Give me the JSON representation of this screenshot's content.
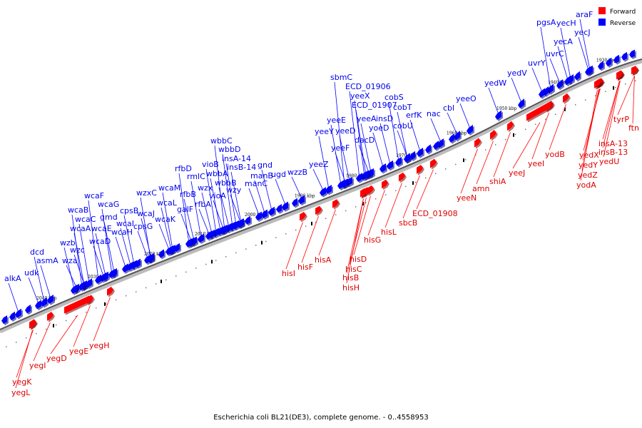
{
  "caption": "Escherichia coli BL21(DE3), complete genome. - 0..4558953",
  "legend": [
    {
      "label": "Forward",
      "color": "#ff0000"
    },
    {
      "label": "Reverse",
      "color": "#0000ff"
    }
  ],
  "ticks": [
    "1930 kbp",
    "1940 kbp",
    "1950 kbp",
    "1960 kbp",
    "1970 kbp",
    "1980 kbp",
    "1990 kbp",
    "2000 kbp",
    "2010 kbp",
    "2020 kbp",
    "2030 kbp",
    "2040 kbp"
  ],
  "reverse_genes": [
    "alkA",
    "udk",
    "dcd",
    "asmA",
    "wza",
    "wzb",
    "wzc",
    "wcaA",
    "wcaB",
    "wcaC",
    "wcaD",
    "wcaE",
    "wcaF",
    "wcaG",
    "gmd",
    "wcaH",
    "wcaI",
    "cpsB",
    "cpsG",
    "wcaJ",
    "wzxC",
    "wcaK",
    "wcaL",
    "wcaM",
    "galF",
    "rfbB",
    "rfbD",
    "rmlC",
    "rfbA",
    "vioB",
    "wzx",
    "vioA",
    "wbbA",
    "wbbB",
    "wzy",
    "wbbC",
    "wbbD",
    "insA-14",
    "insB-14",
    "manC",
    "manB",
    "gnd",
    "ugd",
    "wzzB",
    "yeeZ",
    "yeeY",
    "yeeE",
    "yeeF",
    "yeeD",
    "dacD",
    "yeeA",
    "yeeX",
    "ECD_01907",
    "ECD_01906",
    "sbmC",
    "insD",
    "yoeD",
    "cobU",
    "cobS",
    "cobT",
    "erfK",
    "nac",
    "cbl",
    "yeeO",
    "yedW",
    "yedV",
    "uvrY",
    "uvrC",
    "yecA",
    "pgsA",
    "yecH",
    "yecJ",
    "araF"
  ],
  "forward_genes": [
    "yegL",
    "yegK",
    "yegI",
    "yegD",
    "yegE",
    "yegH",
    "hisI",
    "hisF",
    "hisA",
    "hisH",
    "hisB",
    "hisC",
    "hisD",
    "hisG",
    "hisL",
    "sbcB",
    "ECD_01908",
    "yeeN",
    "amn",
    "shiA",
    "yeeJ",
    "yeeI",
    "yodB",
    "yedX",
    "yedY",
    "yedZ",
    "yodA",
    "yedU",
    "insB-13",
    "insA-13",
    "ftn",
    "tyrP"
  ]
}
